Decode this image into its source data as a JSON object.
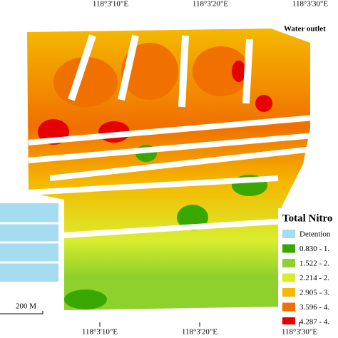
{
  "top_labels": [
    "118°3'10\"E",
    "118°3'20\"E",
    "118°3'30\"E"
  ],
  "bottom_labels": [
    "118°3'10\"E",
    "118°3'20\"E",
    "118°3'30\"E"
  ],
  "water_outlet": "Water outlet",
  "scale_bar": "200 M",
  "legend": {
    "title": "Total Nitro",
    "items": [
      {
        "label": "Detention",
        "color": "#a6dcef"
      },
      {
        "label": "0.830 - 1.",
        "color": "#38a800"
      },
      {
        "label": "1.522 - 2.",
        "color": "#8fd12c"
      },
      {
        "label": "2.214 - 2.",
        "color": "#d9ed2e"
      },
      {
        "label": "2.905 - 3.",
        "color": "#f5b800"
      },
      {
        "label": "3.596 - 4.",
        "color": "#f07000"
      },
      {
        "label": "4.287 - 4.",
        "color": "#e60000"
      }
    ]
  }
}
